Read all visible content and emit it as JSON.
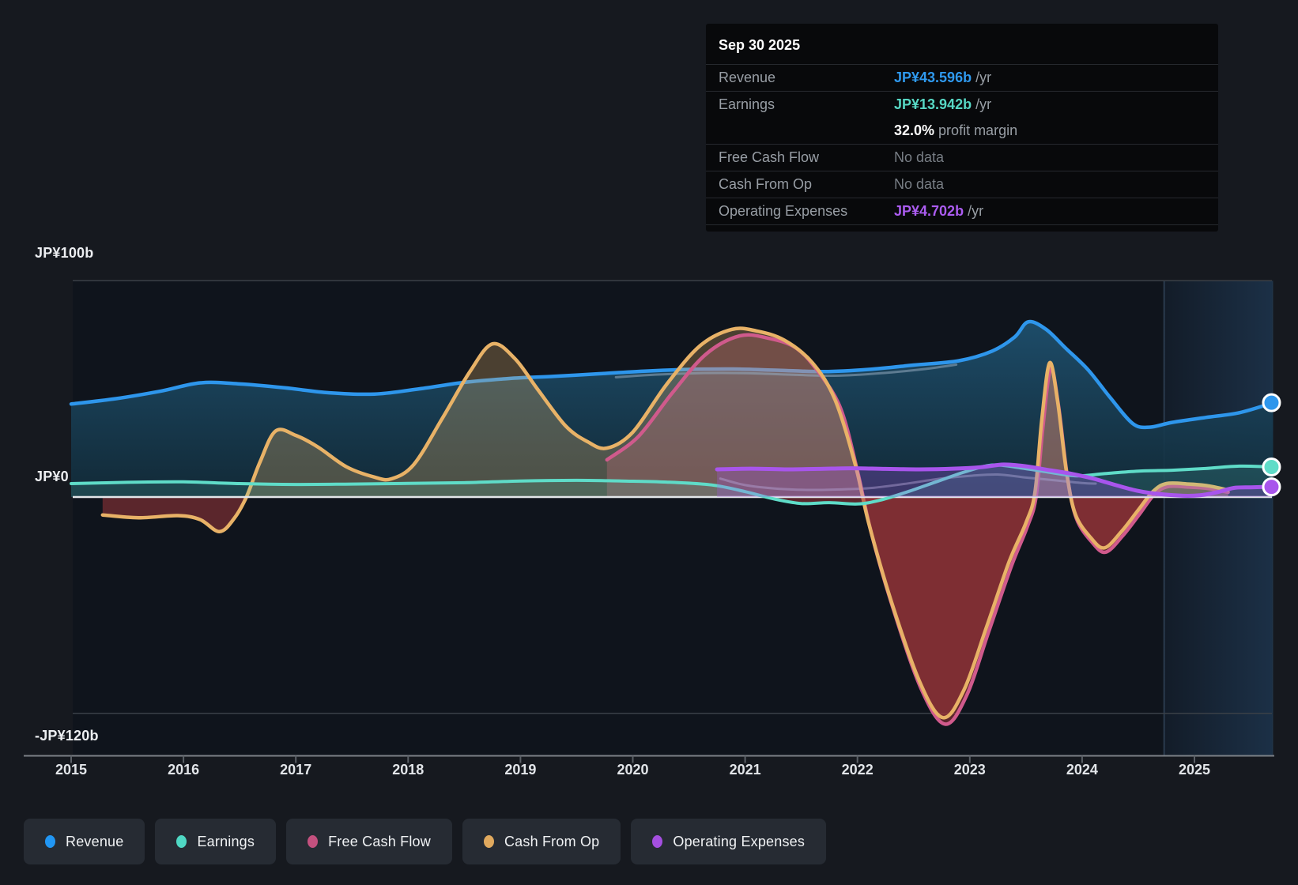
{
  "tooltip": {
    "date": "Sep 30 2025",
    "rows": [
      {
        "label": "Revenue",
        "value": "JP¥43.596b",
        "suffix": "/yr",
        "color": "#2f99ee",
        "bold": true,
        "sep": true
      },
      {
        "label": "Earnings",
        "value": "JP¥13.942b",
        "suffix": "/yr",
        "color": "#57d7c4",
        "bold": true,
        "sep": true
      },
      {
        "label": "",
        "value": "32.0%",
        "suffix": "profit margin",
        "color": "#ffffff",
        "bold": true,
        "sep": false
      },
      {
        "label": "Free Cash Flow",
        "value": "No data",
        "suffix": "",
        "color": "#787e85",
        "bold": false,
        "sep": true
      },
      {
        "label": "Cash From Op",
        "value": "No data",
        "suffix": "",
        "color": "#787e85",
        "bold": false,
        "sep": true
      },
      {
        "label": "Operating Expenses",
        "value": "JP¥4.702b",
        "suffix": "/yr",
        "color": "#ab5cf0",
        "bold": true,
        "sep": true
      }
    ]
  },
  "y_axis": {
    "labels": [
      {
        "text": "JP¥100b",
        "value": 100
      },
      {
        "text": "JP¥0",
        "value": 0
      },
      {
        "text": "-JP¥120b",
        "value": -120
      }
    ]
  },
  "x_axis": {
    "years": [
      "2015",
      "2016",
      "2017",
      "2018",
      "2019",
      "2020",
      "2021",
      "2022",
      "2023",
      "2024",
      "2025"
    ]
  },
  "legend": [
    {
      "label": "Revenue",
      "color": "#2196f3"
    },
    {
      "label": "Earnings",
      "color": "#4fd8c4"
    },
    {
      "label": "Free Cash Flow",
      "color": "#c4517f"
    },
    {
      "label": "Cash From Op",
      "color": "#e0a95e"
    },
    {
      "label": "Operating Expenses",
      "color": "#a44fe0"
    }
  ],
  "colors": {
    "background": "#16191f",
    "plot_background": "#0f141c",
    "grid": "#3a4047",
    "zero_line": "#e2e6e9",
    "axis_line": "#7c8187",
    "negative_fill": "#9b343a",
    "highlight_band": "#3c78b4"
  },
  "chart_data": {
    "type": "line",
    "title": "",
    "xlabel": "",
    "ylabel": "JP¥ billions",
    "x_range": [
      2015.0,
      2025.7
    ],
    "ylim": [
      -120,
      100
    ],
    "gridlines_y": [
      100,
      0,
      -100
    ],
    "grid": true,
    "legend_position": "bottom",
    "highlight_period": {
      "from": 2024.73,
      "to": 2025.7,
      "note": "last 12 months band"
    },
    "units": "JP¥ billions per year",
    "series": [
      {
        "name": "Revenue",
        "color": "#2e96ec",
        "width": 4.5,
        "fill": "gradient-blue",
        "points": [
          [
            2015.0,
            43
          ],
          [
            2015.4,
            45.5
          ],
          [
            2015.8,
            49
          ],
          [
            2016.15,
            52.8
          ],
          [
            2016.5,
            52.3
          ],
          [
            2016.9,
            50.5
          ],
          [
            2017.3,
            48.2
          ],
          [
            2017.7,
            47.6
          ],
          [
            2018.1,
            50
          ],
          [
            2018.5,
            53
          ],
          [
            2018.9,
            54.8
          ],
          [
            2019.3,
            55.8
          ],
          [
            2019.7,
            57
          ],
          [
            2020.1,
            58.2
          ],
          [
            2020.5,
            59
          ],
          [
            2020.9,
            59.2
          ],
          [
            2021.3,
            58.6
          ],
          [
            2021.7,
            58
          ],
          [
            2022.1,
            59
          ],
          [
            2022.5,
            61
          ],
          [
            2022.9,
            63
          ],
          [
            2023.2,
            67.5
          ],
          [
            2023.4,
            74
          ],
          [
            2023.52,
            81
          ],
          [
            2023.68,
            77.5
          ],
          [
            2023.85,
            69
          ],
          [
            2024.05,
            59
          ],
          [
            2024.25,
            46
          ],
          [
            2024.45,
            34
          ],
          [
            2024.6,
            32.3
          ],
          [
            2024.8,
            34.5
          ],
          [
            2025.1,
            36.8
          ],
          [
            2025.4,
            39
          ],
          [
            2025.7,
            43.6
          ]
        ],
        "end_marker": true
      },
      {
        "name": "Free Cash Flow",
        "color": "#d05a8c",
        "width": 4.5,
        "fill": "rgba(208,90,140,0.28)",
        "points": [
          [
            2019.77,
            17.2
          ],
          [
            2020.05,
            28
          ],
          [
            2020.35,
            48
          ],
          [
            2020.65,
            66
          ],
          [
            2020.95,
            74.5
          ],
          [
            2021.2,
            73.5
          ],
          [
            2021.45,
            69
          ],
          [
            2021.65,
            58
          ],
          [
            2021.85,
            41
          ],
          [
            2022.0,
            12
          ],
          [
            2022.12,
            -16
          ],
          [
            2022.32,
            -52
          ],
          [
            2022.57,
            -89
          ],
          [
            2022.78,
            -105
          ],
          [
            2022.97,
            -92
          ],
          [
            2023.17,
            -62
          ],
          [
            2023.37,
            -32
          ],
          [
            2023.51,
            -14
          ],
          [
            2023.59,
            0
          ],
          [
            2023.65,
            32
          ],
          [
            2023.72,
            59.5
          ],
          [
            2023.79,
            42
          ],
          [
            2023.87,
            9
          ],
          [
            2023.95,
            -10
          ],
          [
            2024.09,
            -21
          ],
          [
            2024.21,
            -25.5
          ],
          [
            2024.36,
            -18
          ],
          [
            2024.51,
            -8
          ],
          [
            2024.64,
            1
          ],
          [
            2024.76,
            4.8
          ],
          [
            2024.95,
            4.6
          ],
          [
            2025.12,
            4
          ],
          [
            2025.3,
            2.2
          ]
        ],
        "end_marker": false
      },
      {
        "name": "Cash From Op",
        "color": "#e8b267",
        "width": 4.5,
        "fill": "rgba(232,178,103,0.28)",
        "points": [
          [
            2015.28,
            -8.3
          ],
          [
            2015.6,
            -9.6
          ],
          [
            2015.95,
            -8.6
          ],
          [
            2016.15,
            -10.5
          ],
          [
            2016.32,
            -16
          ],
          [
            2016.45,
            -10
          ],
          [
            2016.56,
            0
          ],
          [
            2016.68,
            16
          ],
          [
            2016.82,
            30.5
          ],
          [
            2017.0,
            28.5
          ],
          [
            2017.2,
            23
          ],
          [
            2017.45,
            14
          ],
          [
            2017.7,
            9.2
          ],
          [
            2017.85,
            8.4
          ],
          [
            2018.05,
            15
          ],
          [
            2018.3,
            36
          ],
          [
            2018.55,
            58
          ],
          [
            2018.75,
            70.8
          ],
          [
            2018.95,
            64
          ],
          [
            2019.15,
            50
          ],
          [
            2019.4,
            33
          ],
          [
            2019.6,
            25.5
          ],
          [
            2019.77,
            22.6
          ],
          [
            2020.0,
            30
          ],
          [
            2020.3,
            52
          ],
          [
            2020.6,
            70
          ],
          [
            2020.88,
            77.5
          ],
          [
            2021.1,
            76.8
          ],
          [
            2021.35,
            72.5
          ],
          [
            2021.6,
            62
          ],
          [
            2021.8,
            45
          ],
          [
            2021.98,
            15
          ],
          [
            2022.1,
            -12
          ],
          [
            2022.3,
            -48
          ],
          [
            2022.55,
            -85
          ],
          [
            2022.76,
            -102
          ],
          [
            2022.95,
            -89
          ],
          [
            2023.15,
            -60
          ],
          [
            2023.35,
            -30
          ],
          [
            2023.5,
            -12
          ],
          [
            2023.58,
            2
          ],
          [
            2023.64,
            35
          ],
          [
            2023.71,
            62
          ],
          [
            2023.78,
            45
          ],
          [
            2023.86,
            12
          ],
          [
            2023.94,
            -8
          ],
          [
            2024.08,
            -19
          ],
          [
            2024.2,
            -23.5
          ],
          [
            2024.35,
            -16
          ],
          [
            2024.5,
            -6
          ],
          [
            2024.63,
            2.5
          ],
          [
            2024.75,
            6.2
          ],
          [
            2024.95,
            6
          ],
          [
            2025.12,
            5.2
          ],
          [
            2025.3,
            3.2
          ]
        ],
        "end_marker": false
      },
      {
        "name": "Earnings",
        "color": "#5fdcc8",
        "width": 4,
        "fill": "rgba(95,220,200,0.16)",
        "points": [
          [
            2015.0,
            6.2
          ],
          [
            2015.5,
            6.8
          ],
          [
            2016.0,
            7
          ],
          [
            2016.5,
            6.2
          ],
          [
            2017.0,
            5.8
          ],
          [
            2017.5,
            6
          ],
          [
            2018.0,
            6.3
          ],
          [
            2018.5,
            6.6
          ],
          [
            2019.0,
            7.4
          ],
          [
            2019.5,
            7.7
          ],
          [
            2019.9,
            7.4
          ],
          [
            2020.3,
            6.9
          ],
          [
            2020.7,
            5.6
          ],
          [
            2021.0,
            2.5
          ],
          [
            2021.25,
            -0.8
          ],
          [
            2021.5,
            -3
          ],
          [
            2021.75,
            -2.6
          ],
          [
            2022.0,
            -3.2
          ],
          [
            2022.2,
            -1.5
          ],
          [
            2022.45,
            2.5
          ],
          [
            2022.7,
            7
          ],
          [
            2022.95,
            11.5
          ],
          [
            2023.2,
            14.8
          ],
          [
            2023.45,
            13.5
          ],
          [
            2023.7,
            11.5
          ],
          [
            2023.95,
            9.8
          ],
          [
            2024.2,
            10.8
          ],
          [
            2024.5,
            12
          ],
          [
            2024.8,
            12.4
          ],
          [
            2025.1,
            13.2
          ],
          [
            2025.4,
            14.3
          ],
          [
            2025.7,
            13.9
          ]
        ],
        "end_marker": true
      },
      {
        "name": "Operating Expenses",
        "color": "#a855ec",
        "width": 5,
        "fill": "rgba(168,85,236,0.28)",
        "points": [
          [
            2020.75,
            12.8
          ],
          [
            2021.05,
            13.1
          ],
          [
            2021.35,
            12.8
          ],
          [
            2021.65,
            13
          ],
          [
            2021.95,
            13.3
          ],
          [
            2022.25,
            13
          ],
          [
            2022.55,
            12.8
          ],
          [
            2022.85,
            13.1
          ],
          [
            2023.1,
            13.8
          ],
          [
            2023.3,
            15
          ],
          [
            2023.5,
            14.2
          ],
          [
            2023.7,
            12.5
          ],
          [
            2023.9,
            10.8
          ],
          [
            2024.1,
            8.5
          ],
          [
            2024.3,
            5.5
          ],
          [
            2024.5,
            2.8
          ],
          [
            2024.7,
            1.3
          ],
          [
            2024.9,
            0.6
          ],
          [
            2025.05,
            0.8
          ],
          [
            2025.2,
            2.2
          ],
          [
            2025.35,
            4.2
          ],
          [
            2025.5,
            4.5
          ],
          [
            2025.7,
            4.7
          ]
        ],
        "end_marker": true
      }
    ],
    "muted_overlay_lines": [
      {
        "name": "revenue-shadow-line",
        "color": "rgba(150,172,192,0.55)",
        "width": 3,
        "points": [
          [
            2019.85,
            55.4
          ],
          [
            2020.2,
            56.6
          ],
          [
            2020.6,
            57.3
          ],
          [
            2021.0,
            57.3
          ],
          [
            2021.4,
            56.6
          ],
          [
            2021.8,
            56.1
          ],
          [
            2022.2,
            57.2
          ],
          [
            2022.6,
            59.2
          ],
          [
            2022.88,
            61.2
          ]
        ]
      },
      {
        "name": "gray-accent-line",
        "color": "rgba(188,198,208,0.45)",
        "width": 3,
        "points": [
          [
            2020.78,
            8.5
          ],
          [
            2021.0,
            5.5
          ],
          [
            2021.3,
            3.8
          ],
          [
            2021.6,
            3.3
          ],
          [
            2021.9,
            3.6
          ],
          [
            2022.15,
            4.3
          ],
          [
            2022.45,
            6.3
          ],
          [
            2022.75,
            8.6
          ],
          [
            2023.0,
            9.8
          ],
          [
            2023.25,
            10.4
          ],
          [
            2023.5,
            9
          ],
          [
            2023.75,
            7.8
          ],
          [
            2024.0,
            6.5
          ],
          [
            2024.12,
            6.2
          ]
        ]
      }
    ]
  }
}
